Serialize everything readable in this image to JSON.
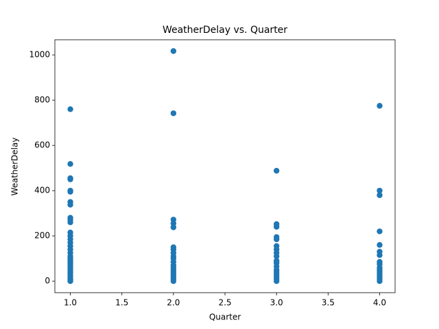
{
  "chart_data": {
    "type": "scatter",
    "title": "WeatherDelay vs. Quarter",
    "x_label": "Quarter",
    "y_label": "WeatherDelay",
    "color": "#1f77b4",
    "x": [
      1,
      1,
      1,
      1,
      1,
      1,
      1,
      1,
      1,
      1,
      1,
      1,
      1,
      1,
      1,
      1,
      1,
      1,
      1,
      1,
      1,
      1,
      1,
      1,
      1,
      1,
      1,
      1,
      1,
      1,
      1,
      2,
      2,
      2,
      2,
      2,
      2,
      2,
      2,
      2,
      2,
      2,
      2,
      2,
      2,
      2,
      2,
      2,
      2,
      2,
      3,
      3,
      3,
      3,
      3,
      3,
      3,
      3,
      3,
      3,
      3,
      3,
      3,
      3,
      3,
      3,
      3,
      3,
      4,
      4,
      4,
      4,
      4,
      4,
      4,
      4,
      4,
      4,
      4,
      4,
      4,
      4,
      4,
      4
    ],
    "values": [
      760,
      518,
      455,
      450,
      400,
      395,
      350,
      338,
      280,
      272,
      260,
      215,
      200,
      185,
      170,
      155,
      140,
      125,
      110,
      100,
      90,
      80,
      70,
      60,
      50,
      40,
      30,
      20,
      10,
      5,
      0,
      1017,
      742,
      272,
      255,
      238,
      150,
      140,
      125,
      110,
      100,
      85,
      70,
      60,
      50,
      40,
      30,
      20,
      10,
      0,
      488,
      252,
      240,
      195,
      185,
      155,
      140,
      125,
      110,
      90,
      80,
      65,
      50,
      40,
      30,
      20,
      10,
      0,
      775,
      400,
      380,
      220,
      160,
      130,
      115,
      85,
      75,
      60,
      50,
      40,
      30,
      20,
      10,
      0
    ],
    "xlim": [
      0.85,
      4.15
    ],
    "xticks": [
      {
        "value": 1,
        "label": "1.0"
      },
      {
        "value": 1.5,
        "label": "1.5"
      },
      {
        "value": 2,
        "label": "2.0"
      },
      {
        "value": 2.5,
        "label": "2.5"
      },
      {
        "value": 3,
        "label": "3.0"
      },
      {
        "value": 3.5,
        "label": "3.5"
      },
      {
        "value": 4,
        "label": "4.0"
      }
    ],
    "ylim": [
      -51,
      1067
    ],
    "yticks": [
      0,
      200,
      400,
      600,
      800,
      1000
    ]
  }
}
